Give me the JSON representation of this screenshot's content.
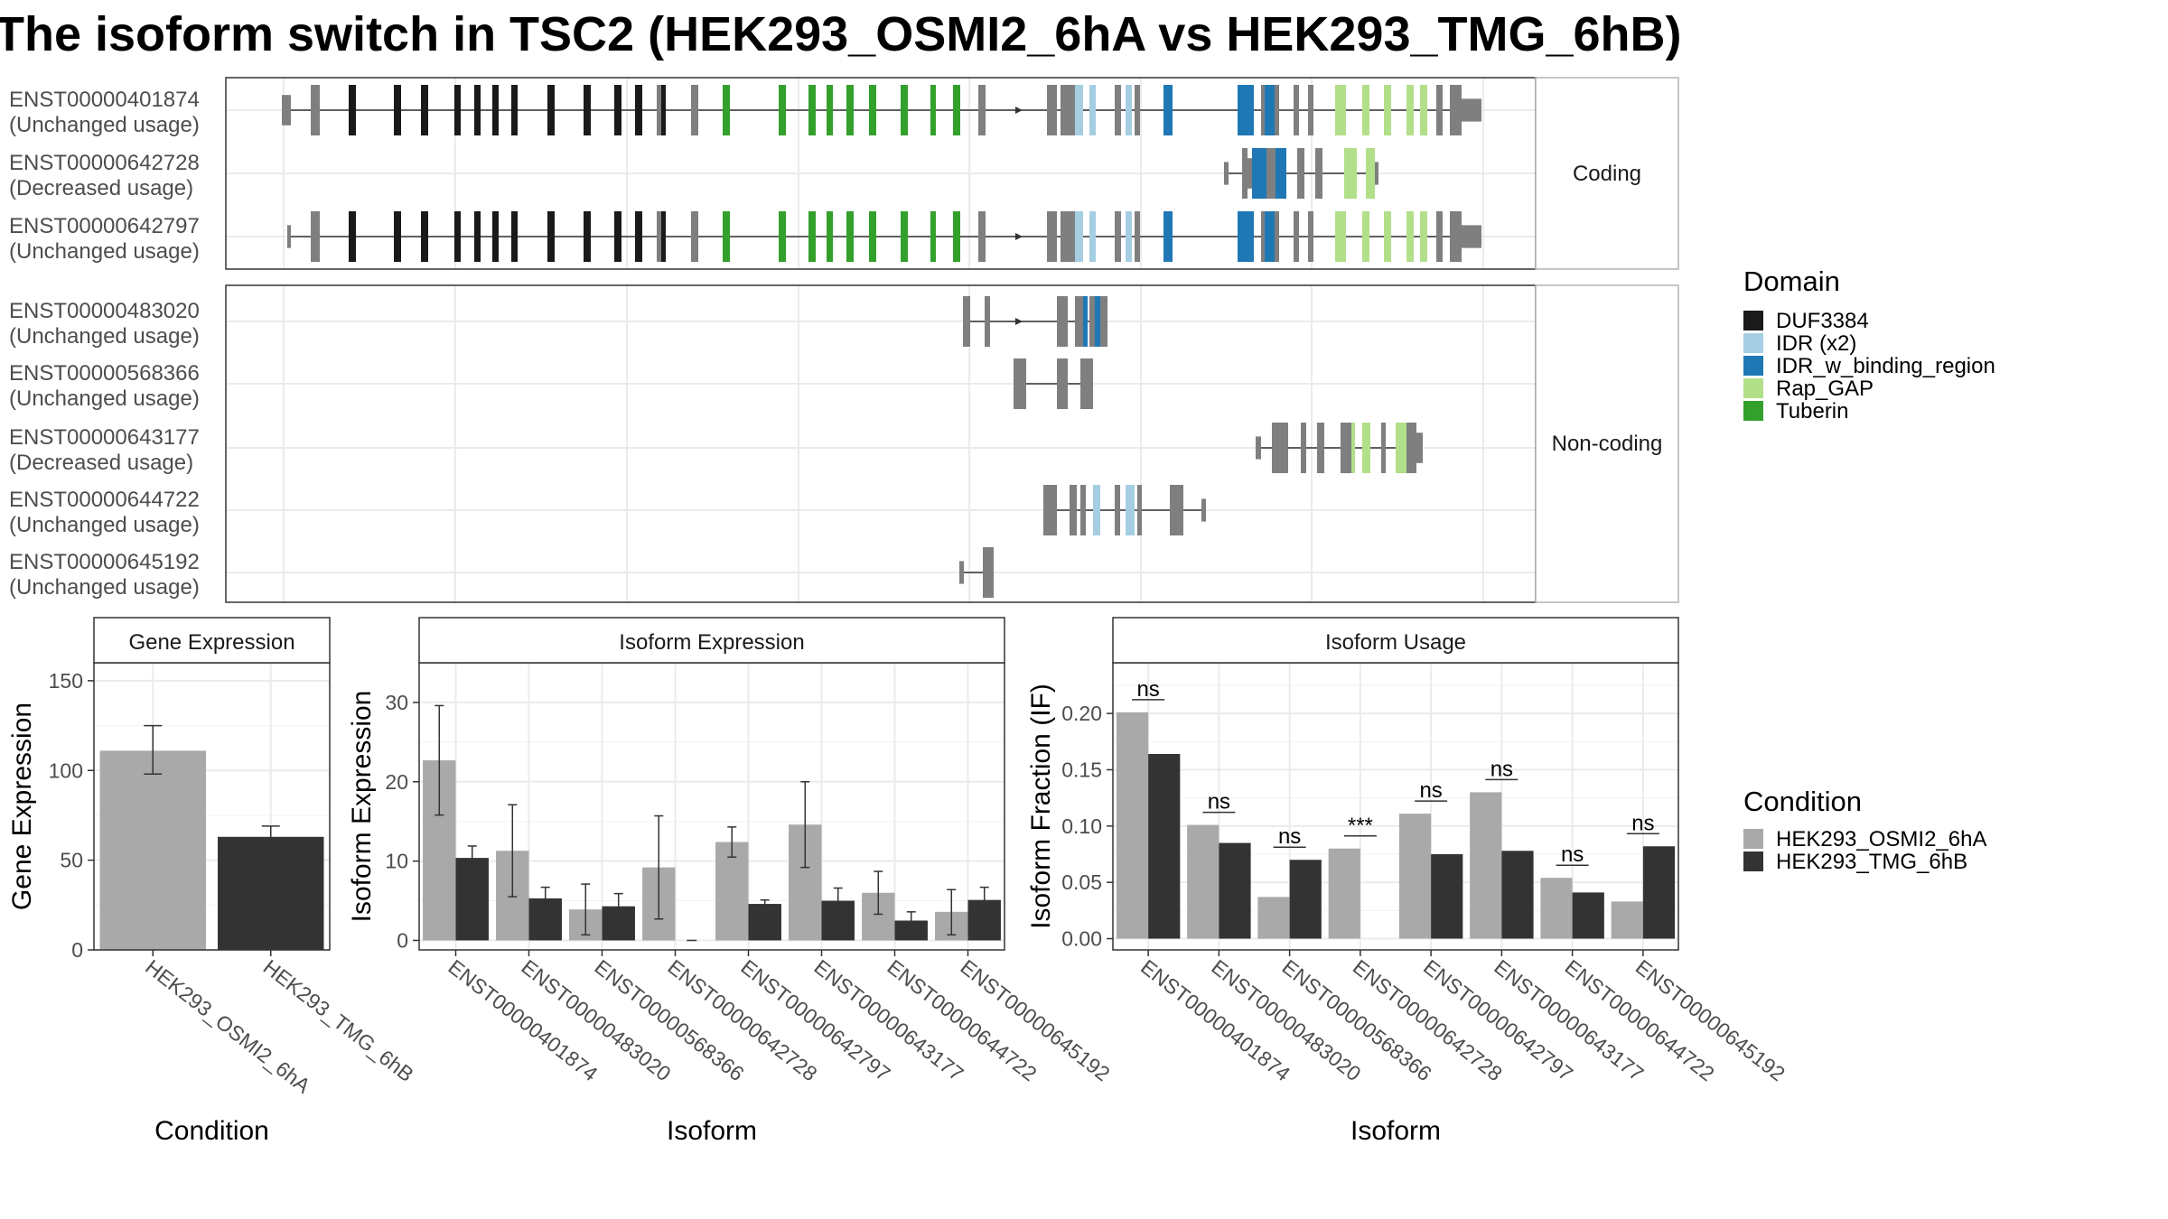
{
  "title": "The isoform switch in TSC2 (HEK293_OSMI2_6hA vs HEK293_TMG_6hB)",
  "structure": {
    "facets": [
      "Coding",
      "Non-coding"
    ],
    "transcripts": [
      {
        "id": "ENST00000401874",
        "usage": "(Unchanged usage)",
        "facet": "Coding"
      },
      {
        "id": "ENST00000642728",
        "usage": "(Decreased usage)",
        "facet": "Coding"
      },
      {
        "id": "ENST00000642797",
        "usage": "(Unchanged usage)",
        "facet": "Coding"
      },
      {
        "id": "ENST00000483020",
        "usage": "(Unchanged usage)",
        "facet": "Non-coding"
      },
      {
        "id": "ENST00000568366",
        "usage": "(Unchanged usage)",
        "facet": "Non-coding"
      },
      {
        "id": "ENST00000643177",
        "usage": "(Decreased usage)",
        "facet": "Non-coding"
      },
      {
        "id": "ENST00000644722",
        "usage": "(Unchanged usage)",
        "facet": "Non-coding"
      },
      {
        "id": "ENST00000645192",
        "usage": "(Unchanged usage)",
        "facet": "Non-coding"
      }
    ],
    "domain_legend_title": "Domain",
    "domains": [
      {
        "name": "DUF3384",
        "color": "#1a1a1a"
      },
      {
        "name": "IDR (x2)",
        "color": "#a6cee3"
      },
      {
        "name": "IDR_w_binding_region",
        "color": "#1f78b4"
      },
      {
        "name": "Rap_GAP",
        "color": "#b2df8a"
      },
      {
        "name": "Tuberin",
        "color": "#33a02c"
      }
    ],
    "exon_color": "#7f7f7f"
  },
  "condition_legend": {
    "title": "Condition",
    "items": [
      {
        "name": "HEK293_OSMI2_6hA",
        "color": "#a9a9a9"
      },
      {
        "name": "HEK293_TMG_6hB",
        "color": "#333333"
      }
    ]
  },
  "chart_data": [
    {
      "type": "bar",
      "title": "Gene Expression",
      "xlabel": "Condition",
      "ylabel": "Gene Expression",
      "categories": [
        "HEK293_OSMI2_6hA",
        "HEK293_TMG_6hB"
      ],
      "values": [
        111,
        63
      ],
      "errors": [
        [
          98,
          125
        ],
        [
          58,
          69
        ]
      ],
      "ylim": [
        0,
        160
      ],
      "yticks": [
        0,
        50,
        100,
        150
      ]
    },
    {
      "type": "bar",
      "title": "Isoform Expression",
      "xlabel": "Isoform",
      "ylabel": "Isoform Expression",
      "categories": [
        "ENST00000401874",
        "ENST00000483020",
        "ENST00000568366",
        "ENST00000642728",
        "ENST00000642797",
        "ENST00000643177",
        "ENST00000644722",
        "ENST00000645192"
      ],
      "series": [
        {
          "name": "HEK293_OSMI2_6hA",
          "values": [
            22.7,
            11.3,
            3.9,
            9.2,
            12.4,
            14.6,
            6.0,
            3.6
          ],
          "errors": [
            [
              15.8,
              29.6
            ],
            [
              5.5,
              17.1
            ],
            [
              0.7,
              7.1
            ],
            [
              2.7,
              15.7
            ],
            [
              10.5,
              14.3
            ],
            [
              9.2,
              20.0
            ],
            [
              3.3,
              8.7
            ],
            [
              0.7,
              6.4
            ]
          ]
        },
        {
          "name": "HEK293_TMG_6hB",
          "values": [
            10.4,
            5.3,
            4.3,
            0.0,
            4.6,
            5.0,
            2.5,
            5.1
          ],
          "errors": [
            [
              8.9,
              11.9
            ],
            [
              3.9,
              6.7
            ],
            [
              2.7,
              5.9
            ],
            [
              0.0,
              0.0
            ],
            [
              4.1,
              5.1
            ],
            [
              3.4,
              6.6
            ],
            [
              1.4,
              3.6
            ],
            [
              3.5,
              6.7
            ]
          ]
        }
      ],
      "ylim": [
        -1.2,
        35
      ],
      "yticks": [
        0,
        10,
        20,
        30
      ]
    },
    {
      "type": "bar",
      "title": "Isoform Usage",
      "xlabel": "Isoform",
      "ylabel": "Isoform Fraction (IF)",
      "categories": [
        "ENST00000401874",
        "ENST00000483020",
        "ENST00000568366",
        "ENST00000642728",
        "ENST00000642797",
        "ENST00000643177",
        "ENST00000644722",
        "ENST00000645192"
      ],
      "series": [
        {
          "name": "HEK293_OSMI2_6hA",
          "values": [
            0.201,
            0.101,
            0.037,
            0.08,
            0.111,
            0.13,
            0.054,
            0.033
          ]
        },
        {
          "name": "HEK293_TMG_6hB",
          "values": [
            0.164,
            0.085,
            0.07,
            0.0,
            0.075,
            0.078,
            0.041,
            0.082
          ]
        }
      ],
      "significance": [
        "ns",
        "ns",
        "ns",
        "***",
        "ns",
        "ns",
        "ns",
        "ns"
      ],
      "ylim": [
        -0.01,
        0.245
      ],
      "yticks": [
        0.0,
        0.05,
        0.1,
        0.15,
        0.2
      ],
      "ytick_labels": [
        "0.00",
        "0.05",
        "0.10",
        "0.15",
        "0.20"
      ]
    }
  ]
}
